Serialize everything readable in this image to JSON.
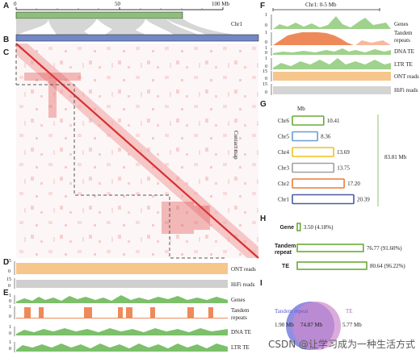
{
  "panels": {
    "A": "A",
    "B": "B",
    "C": "C",
    "D": "D",
    "E": "E",
    "F": "F",
    "G": "G",
    "H": "H",
    "I": "I"
  },
  "panelA": {
    "ticks": [
      "0",
      "50",
      "100 Mb"
    ],
    "chr_label": "Chr1",
    "bar_color": "#8cc07a",
    "bar2_color": "#7088c8"
  },
  "panelC": {
    "side_label": "Contact map",
    "map_color": "#e04848"
  },
  "panelD": {
    "ont_label": "ONT  reads",
    "hifi_label": "HiFi reads",
    "ont_axis": [
      "15",
      "0"
    ],
    "hifi_axis": [
      "15",
      "0"
    ],
    "ont_color": "#f6c68c",
    "hifi_color": "#cfcfcf"
  },
  "panelE": {
    "tracks": [
      {
        "label": "Genes",
        "axis": [
          "1",
          "0"
        ],
        "color": "#7cc06a"
      },
      {
        "label": "Tandem repeats",
        "axis": [
          "1",
          "0"
        ],
        "color": "#ee8a5a"
      },
      {
        "label": "DNA TE",
        "axis": [
          "1",
          "0"
        ],
        "color": "#7cc06a"
      },
      {
        "label": "LTR TE",
        "axis": [
          "1",
          "0"
        ],
        "color": "#7cc06a"
      }
    ]
  },
  "panelF": {
    "title": "Chr1: 0-5 Mb",
    "tracks": [
      {
        "label": "Genes",
        "axis": [
          "1",
          "0"
        ],
        "color": "#7cc06a"
      },
      {
        "label": "Tandem repeats",
        "axis": [
          "1",
          "0"
        ],
        "color": "#ee8a5a"
      },
      {
        "label": "DNA TE",
        "axis": [
          "1",
          "0"
        ],
        "color": "#7cc06a"
      },
      {
        "label": "LTR TE",
        "axis": [
          "1",
          "0"
        ],
        "color": "#7cc06a"
      },
      {
        "label": "ONT  reads",
        "axis": [
          "15",
          "0"
        ],
        "color": "#f6c68c"
      },
      {
        "label": "HiFi reads",
        "axis": [
          "15",
          "0"
        ],
        "color": "#cfcfcf"
      }
    ]
  },
  "chart_data": [
    {
      "type": "bar",
      "unit_label": "Mb",
      "categories": [
        "Chr6",
        "Chr5",
        "Chr4",
        "Chr3",
        "Chr2",
        "Chr1"
      ],
      "values": [
        10.41,
        8.36,
        13.69,
        13.75,
        17.2,
        20.39
      ],
      "value_labels": [
        "10.41",
        "8.36",
        "13.69",
        "13.75",
        "17.20",
        "20.39"
      ],
      "colors": [
        "#6aaa3a",
        "#6a9ad8",
        "#f0c020",
        "#a0a0a0",
        "#ee7a3a",
        "#4a5aa0"
      ],
      "total_label": "83.81 Mb"
    },
    {
      "type": "bar",
      "categories": [
        "Gene",
        "Tandem repeat",
        "TE"
      ],
      "values": [
        3.5,
        76.77,
        80.64
      ],
      "value_labels": [
        "3.50 (4.18%)",
        "76.77 (91.60%)",
        "80.64 (96.22%)"
      ],
      "color": "#6aaa3a"
    }
  ],
  "panelI": {
    "left_title": "Tandem repeat",
    "right_title": "TE",
    "left_only": "1.90 Mb",
    "overlap": "74.87 Mb",
    "right_only": "5.77 Mb",
    "left_color": "#8a8ae0",
    "right_color": "#cc88cc"
  },
  "watermark": "CSDN @让学习成为一种生活方式"
}
